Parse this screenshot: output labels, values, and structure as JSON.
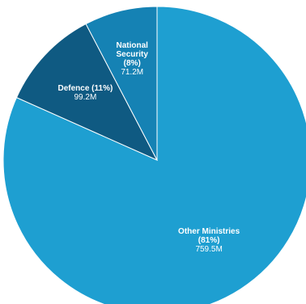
{
  "chart_data": {
    "type": "pie",
    "title": "",
    "series": [
      {
        "name_lines": [
          "Other Ministries",
          "(81%)"
        ],
        "value_label": "759.5M",
        "value": 759.5,
        "percent": 81,
        "color": "#1e9fd1"
      },
      {
        "name_lines": [
          "Defence (11%)"
        ],
        "value_label": "99.2M",
        "value": 99.2,
        "percent": 11,
        "color": "#0f5a82"
      },
      {
        "name_lines": [
          "National",
          "Security",
          "(8%)"
        ],
        "value_label": "71.2M",
        "value": 71.2,
        "percent": 8,
        "color": "#1582b4"
      }
    ]
  }
}
